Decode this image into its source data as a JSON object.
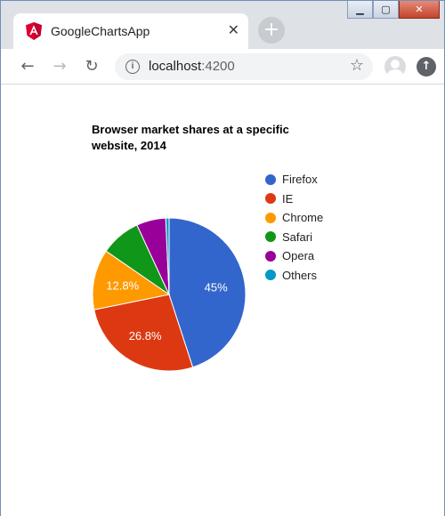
{
  "browser": {
    "tab_title": "GoogleChartsApp",
    "url_host": "localhost",
    "url_port": ":4200",
    "icons": {
      "favicon": "angular-icon",
      "tab_close": "close-icon",
      "new_tab": "plus-icon",
      "back": "arrow-left-icon",
      "forward": "arrow-right-icon",
      "reload": "reload-icon",
      "site_info": "info-icon",
      "bookmark": "star-icon",
      "profile": "avatar-icon",
      "update": "update-icon",
      "minimize": "minimize-icon",
      "maximize": "maximize-icon",
      "close_window": "close-icon"
    },
    "accent_colors": {
      "angular_red": "#dd0031",
      "titlebar": "#dee1e6"
    }
  },
  "chart_data": {
    "type": "pie",
    "title": "Browser market shares at a specific website, 2014",
    "categories": [
      "Firefox",
      "IE",
      "Chrome",
      "Safari",
      "Opera",
      "Others"
    ],
    "values": [
      45.0,
      26.8,
      12.8,
      8.5,
      6.2,
      0.7
    ],
    "colors": [
      "#3366cc",
      "#dc3912",
      "#ff9900",
      "#109618",
      "#990099",
      "#0099c6"
    ],
    "slice_labels": [
      "45%",
      "26.8%",
      "12.8%",
      "",
      "",
      ""
    ],
    "legend_position": "right"
  }
}
